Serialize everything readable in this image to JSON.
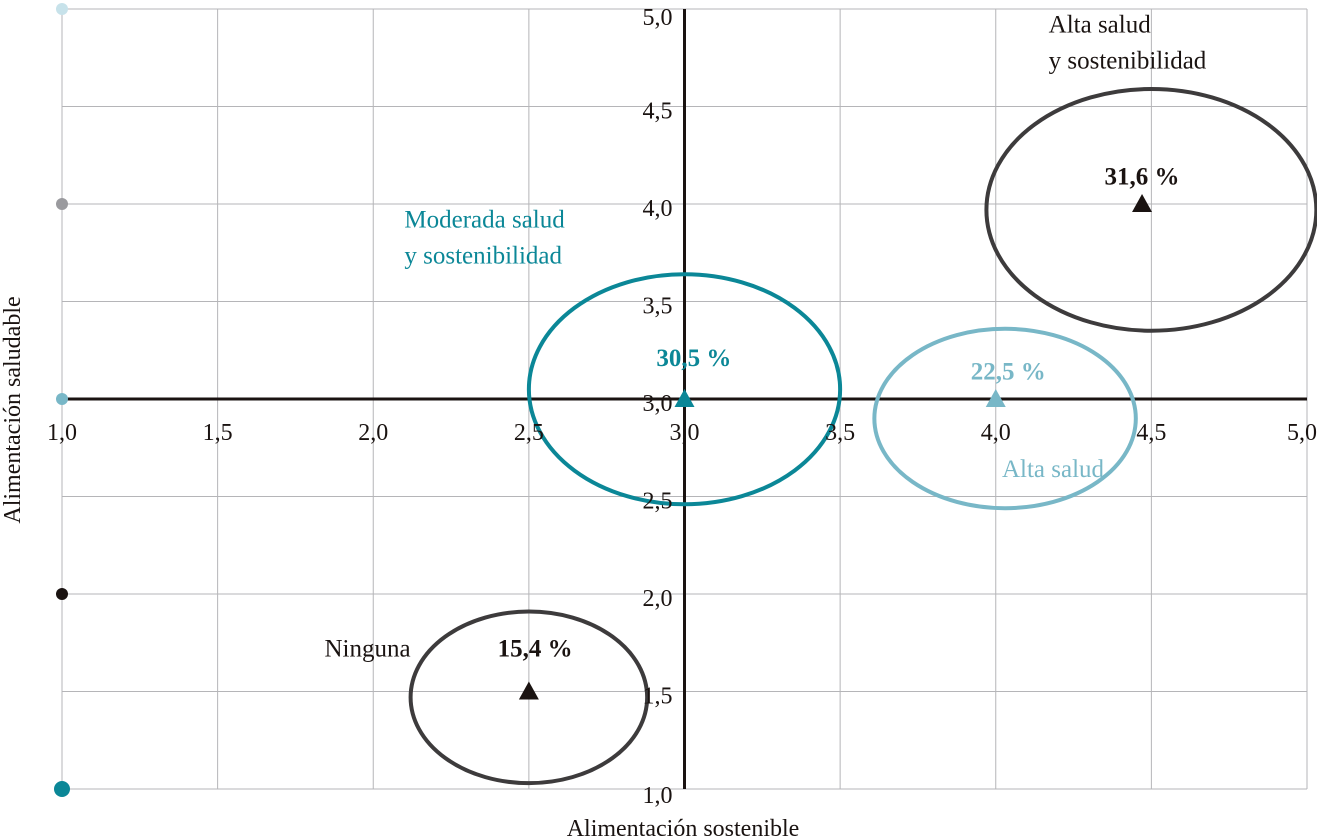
{
  "chart_data": {
    "type": "scatter",
    "title": "",
    "xlabel": "Alimentación sostenible",
    "ylabel": "Alimentación saludable",
    "xlim": [
      1.0,
      5.0
    ],
    "ylim": [
      1.0,
      5.0
    ],
    "x_ticks": [
      "1,0",
      "1,5",
      "2,0",
      "2,5",
      "3,0",
      "3,5",
      "4,0",
      "4,5",
      "5,0"
    ],
    "y_ticks": [
      "1,0",
      "1,5",
      "2,0",
      "2,5",
      "3,0",
      "3,5",
      "4,0",
      "4,5",
      "5,0"
    ],
    "grid": true,
    "colors": {
      "dark": "#1a1311",
      "ellipse_dark": "#3d3b3c",
      "teal": "#0b8797",
      "light_blue": "#78b7c7",
      "grid": "#b5b5b8",
      "gray_dot": "#9a9a9e",
      "pale_dot": "#c7e2ea"
    },
    "clusters": [
      {
        "name_lines": [
          "Ninguna"
        ],
        "value_label": "15,4 %",
        "x": 2.5,
        "y": 1.5,
        "rx": 0.38,
        "ry": 0.44,
        "center_dx": 0.0,
        "center_dy": -0.03,
        "color": "#1a1311",
        "stroke": "#3d3b3c",
        "name_anchor": "end",
        "name_x": 2.12,
        "name_y": 1.68,
        "value_x": 2.52,
        "value_y": 1.68
      },
      {
        "name_lines": [
          "Moderada salud",
          "y sostenibilidad"
        ],
        "value_label": "30,5 %",
        "x": 3.0,
        "y": 3.0,
        "rx": 0.5,
        "ry": 0.59,
        "center_dx": 0.0,
        "center_dy": 0.05,
        "color": "#0b8797",
        "stroke": "#0b8797",
        "name_anchor": "start",
        "name_x": 2.1,
        "name_y": 3.88,
        "value_x": 3.03,
        "value_y": 3.17
      },
      {
        "name_lines": [
          "Alta salud"
        ],
        "value_label": "22,5 %",
        "x": 4.0,
        "y": 3.0,
        "rx": 0.42,
        "ry": 0.46,
        "center_dx": 0.03,
        "center_dy": -0.1,
        "color": "#78b7c7",
        "stroke": "#78b7c7",
        "name_anchor": "start",
        "name_x": 4.02,
        "name_y": 2.6,
        "value_x": 4.04,
        "value_y": 3.1
      },
      {
        "name_lines": [
          "Alta salud",
          "y sostenibilidad"
        ],
        "value_label": "31,6 %",
        "x": 4.47,
        "y": 4.0,
        "rx": 0.53,
        "ry": 0.62,
        "center_dx": 0.03,
        "center_dy": -0.03,
        "color": "#1a1311",
        "stroke": "#3d3b3c",
        "name_anchor": "start",
        "name_x": 4.17,
        "name_y": 4.88,
        "value_x": 4.47,
        "value_y": 4.1
      }
    ],
    "legend_dots": [
      {
        "y": 5.0,
        "color": "#c7e2ea"
      },
      {
        "y": 4.0,
        "color": "#9a9a9e"
      },
      {
        "y": 3.0,
        "color": "#78b7c7"
      },
      {
        "y": 2.0,
        "color": "#1a1311"
      },
      {
        "y": 1.0,
        "color": "#0b8797"
      }
    ]
  }
}
